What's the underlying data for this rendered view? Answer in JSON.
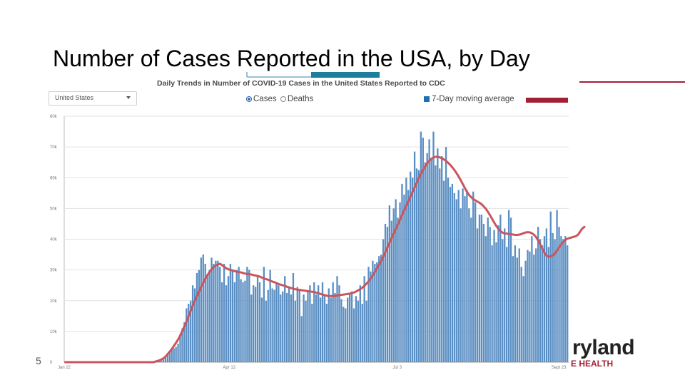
{
  "slide": {
    "title": "Number of Cases Reported in the USA, by Day",
    "number": "5",
    "logo_text": "ryland",
    "logo_sub": "E HEALTH",
    "colors": {
      "accent_red": "#a31f34",
      "accent_teal": "#1b7f9c",
      "bar": "#5b8fc3",
      "line": "#c9555e"
    }
  },
  "controls": {
    "region_select": "United States",
    "radio_cases": "Cases",
    "radio_deaths": "Deaths",
    "moving_avg_label": "7-Day moving average"
  },
  "chart_data": {
    "type": "bar",
    "title": "Daily Trends in Number of COVID-19 Cases in the United States Reported to CDC",
    "xlabel": "",
    "ylabel": "",
    "ylim": [
      0,
      80000
    ],
    "y_ticks": [
      "0",
      "10k",
      "20k",
      "30k",
      "40k",
      "50k",
      "60k",
      "70k",
      "80k"
    ],
    "x_ticks": [
      "Jan 22",
      "Apr 12",
      "Jul 3",
      "Sept 23"
    ],
    "grid": true,
    "series": [
      {
        "name": "Daily cases",
        "values": [
          0,
          0,
          0,
          0,
          0,
          0,
          0,
          0,
          0,
          0,
          0,
          0,
          0,
          0,
          0,
          0,
          0,
          0,
          0,
          0,
          0,
          0,
          0,
          0,
          0,
          0,
          0,
          0,
          0,
          0,
          0,
          0,
          0,
          0,
          0,
          0,
          0,
          0,
          0,
          0,
          0,
          0,
          0,
          100,
          150,
          300,
          500,
          900,
          1500,
          2500,
          3500,
          4000,
          4500,
          5000,
          6000,
          9000,
          11000,
          13000,
          17500,
          19000,
          20000,
          25000,
          24000,
          29000,
          30000,
          34000,
          35000,
          32000,
          28000,
          30000,
          34000,
          32000,
          33000,
          33000,
          31000,
          26000,
          32000,
          25000,
          28000,
          32000,
          30000,
          26000,
          30000,
          31000,
          27000,
          26000,
          26500,
          31000,
          30000,
          22000,
          25000,
          24500,
          28000,
          26000,
          21000,
          31000,
          20000,
          23500,
          30000,
          24000,
          23500,
          26000,
          25000,
          22000,
          23000,
          28000,
          22500,
          24500,
          22000,
          29000,
          20000,
          24500,
          23500,
          15000,
          22000,
          20000,
          23000,
          25000,
          19000,
          26000,
          22000,
          25000,
          21000,
          26000,
          22000,
          19000,
          24000,
          21000,
          26000,
          22500,
          28000,
          25000,
          20500,
          18000,
          17500,
          21000,
          22000,
          23000,
          17500,
          21500,
          20000,
          25000,
          19000,
          28000,
          20000,
          31000,
          29500,
          33000,
          32000,
          32500,
          34500,
          35000,
          40000,
          45000,
          44000,
          51000,
          46000,
          50000,
          53000,
          47000,
          52000,
          58000,
          54500,
          60000,
          56000,
          62000,
          60000,
          68500,
          63000,
          62500,
          75000,
          73000,
          65000,
          68000,
          72500,
          66000,
          75000,
          64000,
          69500,
          63000,
          67000,
          59000,
          70000,
          60000,
          57000,
          58000,
          55000,
          53000,
          56000,
          50000,
          56500,
          54000,
          56000,
          50000,
          47000,
          55500,
          52000,
          43500,
          48000,
          48000,
          45000,
          41000,
          47000,
          44000,
          38000,
          43000,
          39000,
          44500,
          48000,
          40000,
          43500,
          37500,
          49500,
          47000,
          34500,
          38000,
          34000,
          37000,
          31000,
          28000,
          33000,
          36500,
          36000,
          41000,
          35000,
          37000,
          44000,
          40000,
          38000,
          41000,
          43500,
          37500,
          49000,
          42000,
          40000,
          49500,
          44000,
          41000,
          40000,
          41000,
          38000
        ]
      },
      {
        "name": "7-Day moving average",
        "values": [
          0,
          0,
          0,
          0,
          0,
          0,
          0,
          0,
          0,
          0,
          0,
          0,
          0,
          0,
          0,
          0,
          0,
          0,
          0,
          0,
          0,
          0,
          0,
          0,
          0,
          0,
          0,
          0,
          0,
          0,
          0,
          0,
          0,
          0,
          0,
          0,
          0,
          0,
          0,
          0,
          0,
          0,
          0,
          200,
          400,
          600,
          900,
          1300,
          1900,
          2700,
          3500,
          4400,
          5400,
          6400,
          7500,
          8800,
          10200,
          11800,
          13400,
          15100,
          16800,
          18500,
          20100,
          21700,
          23200,
          24700,
          26000,
          27300,
          28400,
          29400,
          30300,
          31000,
          31500,
          31800,
          32000,
          31500,
          31000,
          30500,
          30200,
          30000,
          29800,
          29600,
          29400,
          29300,
          29200,
          29000,
          28800,
          28700,
          28600,
          28500,
          28300,
          28200,
          28000,
          27800,
          27500,
          27200,
          27000,
          26800,
          26500,
          26200,
          26000,
          25700,
          25400,
          25200,
          25000,
          24800,
          24500,
          24300,
          24100,
          23900,
          23700,
          23600,
          23500,
          23400,
          23300,
          23200,
          23100,
          23000,
          22900,
          22800,
          22600,
          22400,
          22200,
          22000,
          21800,
          21600,
          21500,
          21500,
          21500,
          21600,
          21700,
          21800,
          21900,
          22000,
          22100,
          22200,
          22300,
          22500,
          22700,
          23000,
          23400,
          23800,
          24300,
          24900,
          25600,
          26400,
          27300,
          28300,
          29400,
          30600,
          31800,
          33100,
          34500,
          36000,
          37500,
          39000,
          40500,
          42000,
          43500,
          45000,
          46500,
          48000,
          49500,
          51000,
          52500,
          54000,
          55500,
          57000,
          58500,
          60000,
          61400,
          62700,
          63800,
          64800,
          65600,
          66200,
          66600,
          66800,
          66800,
          66600,
          66300,
          65900,
          65400,
          64800,
          64100,
          63300,
          62400,
          61400,
          60300,
          59100,
          57800,
          56500,
          55300,
          54300,
          53600,
          53000,
          52600,
          52200,
          51800,
          51300,
          50600,
          49800,
          48800,
          47700,
          46500,
          45300,
          44200,
          43300,
          42600,
          42100,
          41900,
          41800,
          41700,
          41600,
          41500,
          41400,
          41400,
          41500,
          41700,
          42000,
          42200,
          42300,
          42200,
          41900,
          41400,
          40600,
          39500,
          38200,
          36800,
          35500,
          34600,
          34300,
          34400,
          34800,
          35500,
          36400,
          37400,
          38400,
          39200,
          39800,
          40200,
          40400,
          40600,
          40800,
          41000,
          41500,
          42500,
          43500,
          44000
        ]
      }
    ]
  }
}
